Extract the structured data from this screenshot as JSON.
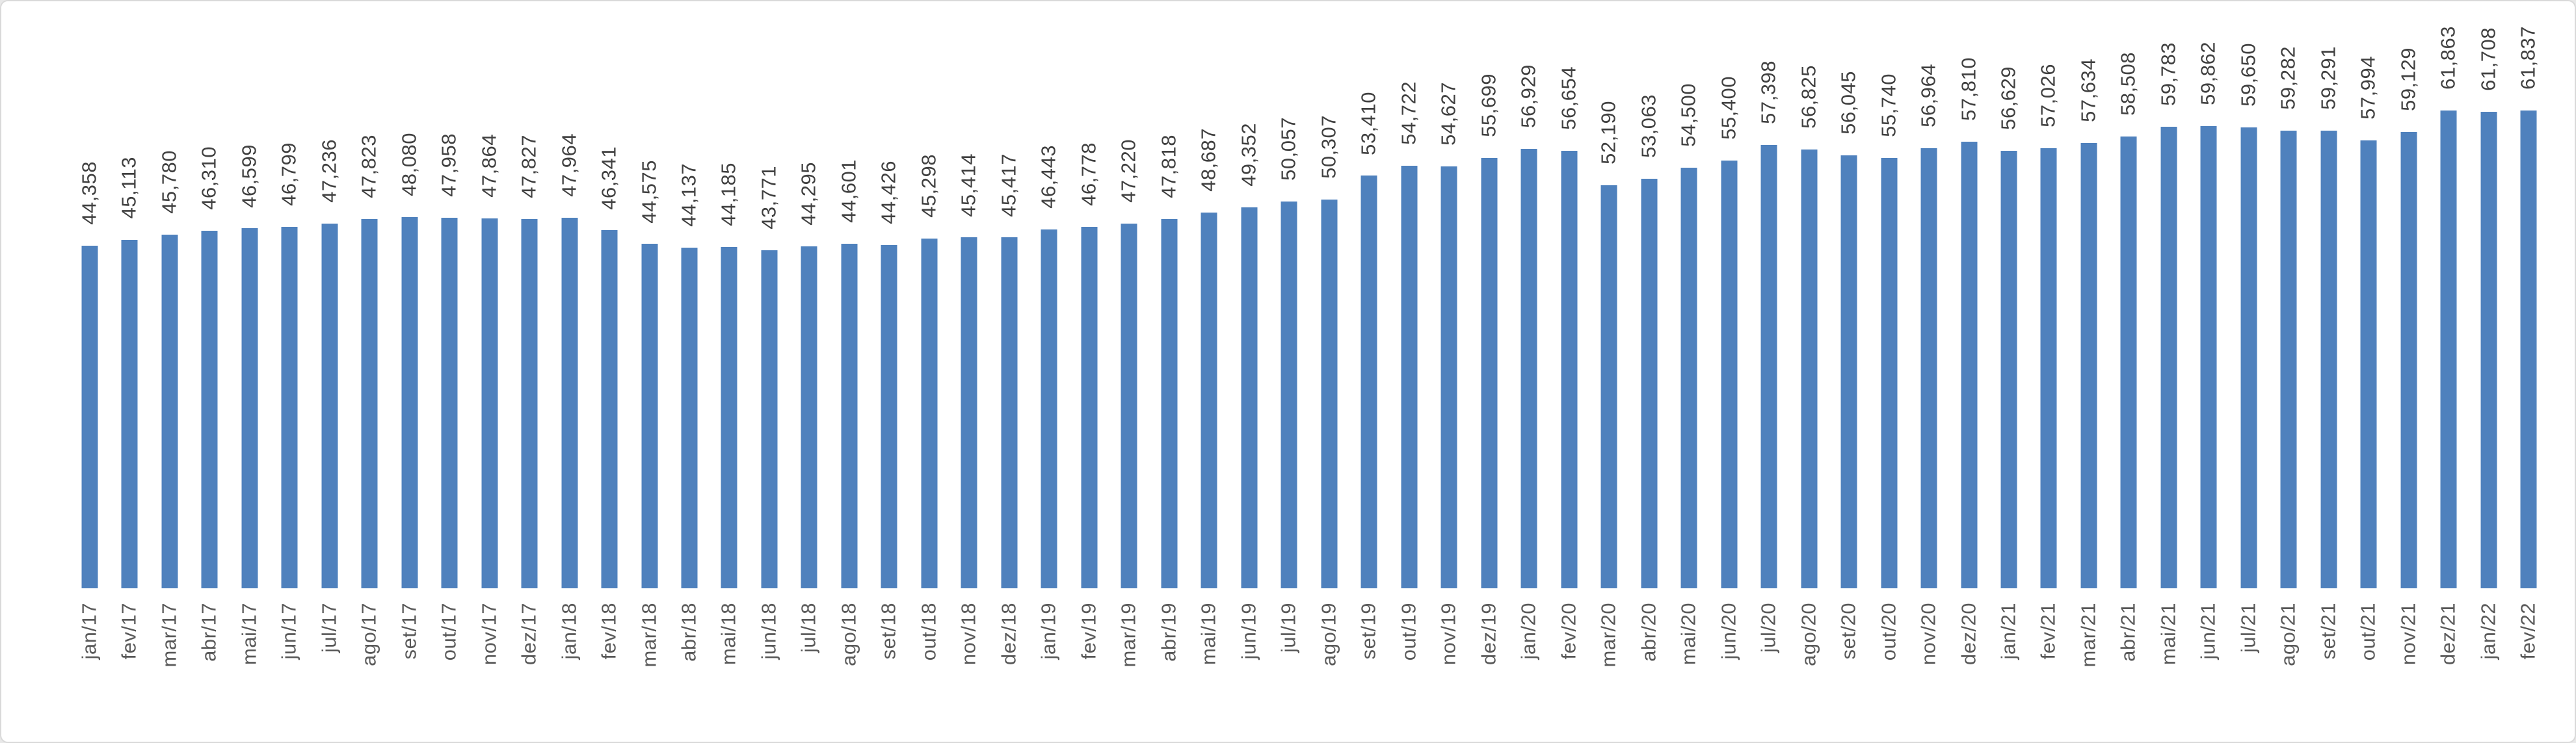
{
  "chart": {
    "background_color": "#FFFFFF",
    "frame_border_color": "#D9D9D9",
    "bar_color": "#4F81BD",
    "value_label_color": "#404040",
    "axis_label_color": "#595959"
  },
  "chart_data": {
    "type": "bar",
    "title": "",
    "xlabel": "",
    "ylabel": "",
    "ylim": [
      0,
      61863
    ],
    "grid": false,
    "legend": false,
    "y_axis_visible": false,
    "data_labels_position": "outside-end-rotated-90",
    "x_tick_rotation": 90,
    "categories": [
      "jan/17",
      "fev/17",
      "mar/17",
      "abr/17",
      "mai/17",
      "jun/17",
      "jul/17",
      "ago/17",
      "set/17",
      "out/17",
      "nov/17",
      "dez/17",
      "jan/18",
      "fev/18",
      "mar/18",
      "abr/18",
      "mai/18",
      "jun/18",
      "jul/18",
      "ago/18",
      "set/18",
      "out/18",
      "nov/18",
      "dez/18",
      "jan/19",
      "fev/19",
      "mar/19",
      "abr/19",
      "mai/19",
      "jun/19",
      "jul/19",
      "ago/19",
      "set/19",
      "out/19",
      "nov/19",
      "dez/19",
      "jan/20",
      "fev/20",
      "mar/20",
      "abr/20",
      "mai/20",
      "jun/20",
      "jul/20",
      "ago/20",
      "set/20",
      "out/20",
      "nov/20",
      "dez/20",
      "jan/21",
      "fev/21",
      "mar/21",
      "abr/21",
      "mai/21",
      "jun/21",
      "jul/21",
      "ago/21",
      "set/21",
      "out/21",
      "nov/21",
      "dez/21",
      "jan/22",
      "fev/22"
    ],
    "values": [
      44358,
      45113,
      45780,
      46310,
      46599,
      46799,
      47236,
      47823,
      48080,
      47958,
      47864,
      47827,
      47964,
      46341,
      44575,
      44137,
      44185,
      43771,
      44295,
      44601,
      44426,
      45298,
      45414,
      45417,
      46443,
      46778,
      47220,
      47818,
      48687,
      49352,
      50057,
      50307,
      53410,
      54722,
      54627,
      55699,
      56929,
      56654,
      52190,
      53063,
      54500,
      55400,
      57398,
      56825,
      56045,
      55740,
      56964,
      57810,
      56629,
      57026,
      57634,
      58508,
      59783,
      59862,
      59650,
      59282,
      59291,
      57994,
      59129,
      61863,
      61708,
      61837
    ],
    "value_labels": [
      "44,358",
      "45,113",
      "45,780",
      "46,310",
      "46,599",
      "46,799",
      "47,236",
      "47,823",
      "48,080",
      "47,958",
      "47,864",
      "47,827",
      "47,964",
      "46,341",
      "44,575",
      "44,137",
      "44,185",
      "43,771",
      "44,295",
      "44,601",
      "44,426",
      "45,298",
      "45,414",
      "45,417",
      "46,443",
      "46,778",
      "47,220",
      "47,818",
      "48,687",
      "49,352",
      "50,057",
      "50,307",
      "53,410",
      "54,722",
      "54,627",
      "55,699",
      "56,929",
      "56,654",
      "52,190",
      "53,063",
      "54,500",
      "55,400",
      "57,398",
      "56,825",
      "56,045",
      "55,740",
      "56,964",
      "57,810",
      "56,629",
      "57,026",
      "57,634",
      "58,508",
      "59,783",
      "59,862",
      "59,650",
      "59,282",
      "59,291",
      "57,994",
      "59,129",
      "61,863",
      "61,708",
      "61,837"
    ]
  }
}
